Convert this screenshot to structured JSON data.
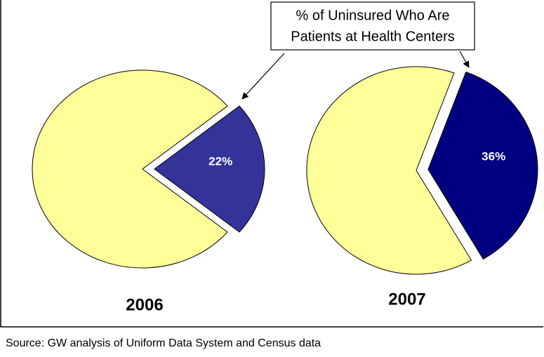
{
  "chart_data": [
    {
      "type": "pie",
      "title": "2006",
      "values": [
        22,
        78
      ],
      "value_labels": [
        "22%",
        null
      ],
      "colors": [
        "#333399",
        "#ffff99"
      ]
    },
    {
      "type": "pie",
      "title": "2007",
      "values": [
        36,
        64
      ],
      "value_labels": [
        "36%",
        null
      ],
      "colors": [
        "#000080",
        "#ffff99"
      ]
    }
  ],
  "annotation": {
    "lines": [
      "% of Uninsured Who Are",
      "Patients at Health Centers"
    ]
  },
  "source": "Source: GW analysis of Uniform Data System and Census data"
}
